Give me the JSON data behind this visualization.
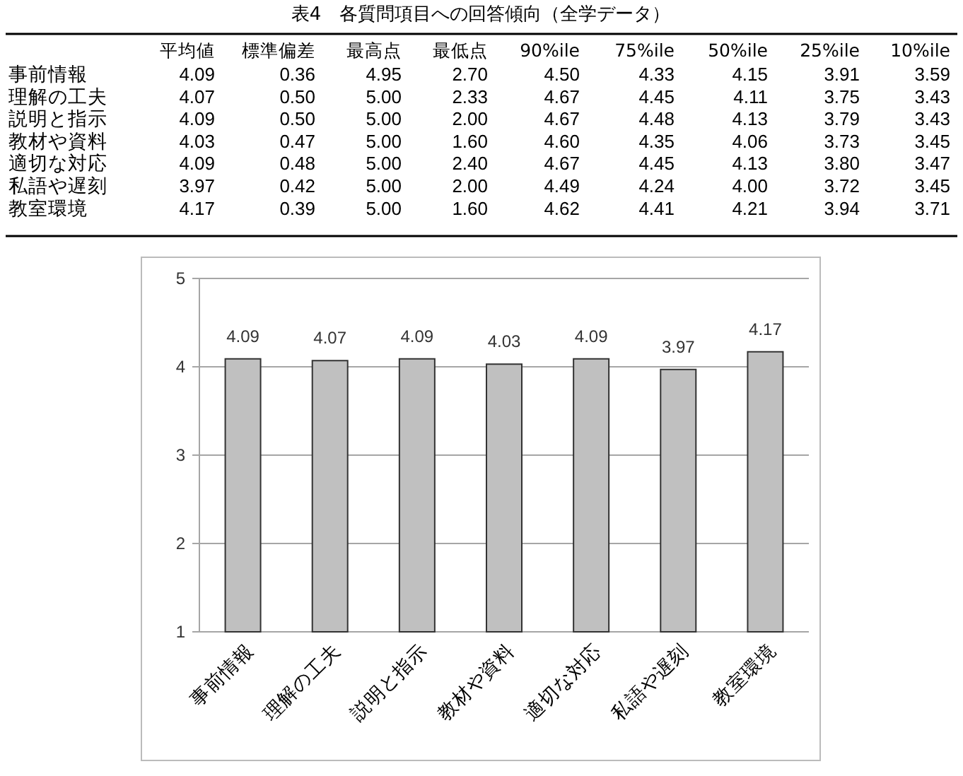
{
  "chart_data": [
    {
      "type": "heatmap",
      "title": "表4　各質問項目への回答傾向（全学データ）",
      "data_labels": true,
      "categories": [
        "平均値",
        "標準偏差",
        "最高点",
        "最低点",
        "90%ile",
        "75%ile",
        "50%ile",
        "25%ile",
        "10%ile"
      ],
      "y_categories": [
        "事前情報",
        "理解の工夫",
        "説明と指示",
        "教材や資料",
        "適切な対応",
        "私語や遅刻",
        "教室環境"
      ],
      "cells": [
        [
          4.09,
          0.36,
          4.95,
          2.7,
          4.5,
          4.33,
          4.15,
          3.91,
          3.59
        ],
        [
          4.07,
          0.5,
          5.0,
          2.33,
          4.67,
          4.45,
          4.11,
          3.75,
          3.43
        ],
        [
          4.09,
          0.5,
          5.0,
          2.0,
          4.67,
          4.48,
          4.13,
          3.79,
          3.43
        ],
        [
          4.03,
          0.47,
          5.0,
          1.6,
          4.6,
          4.35,
          4.06,
          3.73,
          3.45
        ],
        [
          4.09,
          0.48,
          5.0,
          2.4,
          4.67,
          4.45,
          4.13,
          3.8,
          3.47
        ],
        [
          3.97,
          0.42,
          5.0,
          2.0,
          4.49,
          4.24,
          4.0,
          3.72,
          3.45
        ],
        [
          4.17,
          0.39,
          5.0,
          1.6,
          4.62,
          4.41,
          4.21,
          3.94,
          3.71
        ]
      ],
      "cell_labels": [
        [
          "4.09",
          "0.36",
          "4.95",
          "2.70",
          "4.50",
          "4.33",
          "4.15",
          "3.91",
          "3.59"
        ],
        [
          "4.07",
          "0.50",
          "5.00",
          "2.33",
          "4.67",
          "4.45",
          "4.11",
          "3.75",
          "3.43"
        ],
        [
          "4.09",
          "0.50",
          "5.00",
          "2.00",
          "4.67",
          "4.48",
          "4.13",
          "3.79",
          "3.43"
        ],
        [
          "4.03",
          "0.47",
          "5.00",
          "1.60",
          "4.60",
          "4.35",
          "4.06",
          "3.73",
          "3.45"
        ],
        [
          "4.09",
          "0.48",
          "5.00",
          "2.40",
          "4.67",
          "4.45",
          "4.13",
          "3.80",
          "3.47"
        ],
        [
          "3.97",
          "0.42",
          "5.00",
          "2.00",
          "4.49",
          "4.24",
          "4.00",
          "3.72",
          "3.45"
        ],
        [
          "4.17",
          "0.39",
          "5.00",
          "1.60",
          "4.62",
          "4.41",
          "4.21",
          "3.94",
          "3.71"
        ]
      ]
    },
    {
      "type": "bar",
      "categories": [
        "事前情報",
        "理解の工夫",
        "説明と指示",
        "教材や資料",
        "適切な対応",
        "私語や遅刻",
        "教室環境"
      ],
      "values": [
        4.09,
        4.07,
        4.09,
        4.03,
        4.09,
        3.97,
        4.17
      ],
      "color": "#c0c0c0",
      "value_labels": [
        "4.09",
        "4.07",
        "4.09",
        "4.03",
        "4.09",
        "3.97",
        "4.17"
      ],
      "ylim": [
        1,
        5
      ],
      "yticks": [
        1,
        2,
        3,
        4,
        5
      ],
      "grid": "y"
    }
  ]
}
